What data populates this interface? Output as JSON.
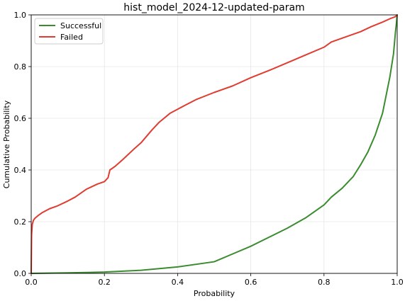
{
  "chart_data": {
    "type": "line",
    "title": "hist_model_2024-12-updated-param",
    "xlabel": "Probability",
    "ylabel": "Cumulative Probability",
    "xlim": [
      0.0,
      1.0
    ],
    "ylim": [
      0.0,
      1.0
    ],
    "xticks": [
      "0.0",
      "0.2",
      "0.4",
      "0.6",
      "0.8",
      "1.0"
    ],
    "yticks": [
      "0.0",
      "0.2",
      "0.4",
      "0.6",
      "0.8",
      "1.0"
    ],
    "grid": true,
    "legend_position": "upper-left",
    "series": [
      {
        "name": "Successful",
        "color": "#3a8c2f",
        "x": [
          0.0,
          0.1,
          0.2,
          0.3,
          0.4,
          0.5,
          0.55,
          0.6,
          0.65,
          0.7,
          0.75,
          0.8,
          0.82,
          0.85,
          0.88,
          0.9,
          0.92,
          0.94,
          0.96,
          0.97,
          0.98,
          0.99,
          0.995,
          0.998,
          1.0
        ],
        "y": [
          0.0,
          0.002,
          0.005,
          0.012,
          0.025,
          0.045,
          0.075,
          0.105,
          0.14,
          0.175,
          0.215,
          0.265,
          0.295,
          0.33,
          0.375,
          0.42,
          0.47,
          0.535,
          0.62,
          0.69,
          0.76,
          0.85,
          0.93,
          0.97,
          1.0
        ]
      },
      {
        "name": "Failed",
        "color": "#e03c31",
        "x": [
          0.0,
          0.001,
          0.003,
          0.006,
          0.01,
          0.02,
          0.03,
          0.05,
          0.07,
          0.1,
          0.12,
          0.15,
          0.18,
          0.2,
          0.21,
          0.215,
          0.23,
          0.25,
          0.28,
          0.3,
          0.33,
          0.35,
          0.38,
          0.4,
          0.42,
          0.45,
          0.5,
          0.55,
          0.6,
          0.65,
          0.7,
          0.75,
          0.8,
          0.82,
          0.85,
          0.9,
          0.93,
          0.96,
          0.98,
          0.995,
          1.0
        ],
        "y": [
          0.0,
          0.15,
          0.19,
          0.205,
          0.213,
          0.225,
          0.235,
          0.25,
          0.26,
          0.28,
          0.295,
          0.325,
          0.345,
          0.355,
          0.37,
          0.4,
          0.415,
          0.44,
          0.48,
          0.505,
          0.555,
          0.585,
          0.62,
          0.635,
          0.65,
          0.672,
          0.7,
          0.725,
          0.757,
          0.785,
          0.815,
          0.845,
          0.875,
          0.895,
          0.91,
          0.935,
          0.955,
          0.972,
          0.985,
          0.993,
          1.0
        ]
      }
    ]
  }
}
